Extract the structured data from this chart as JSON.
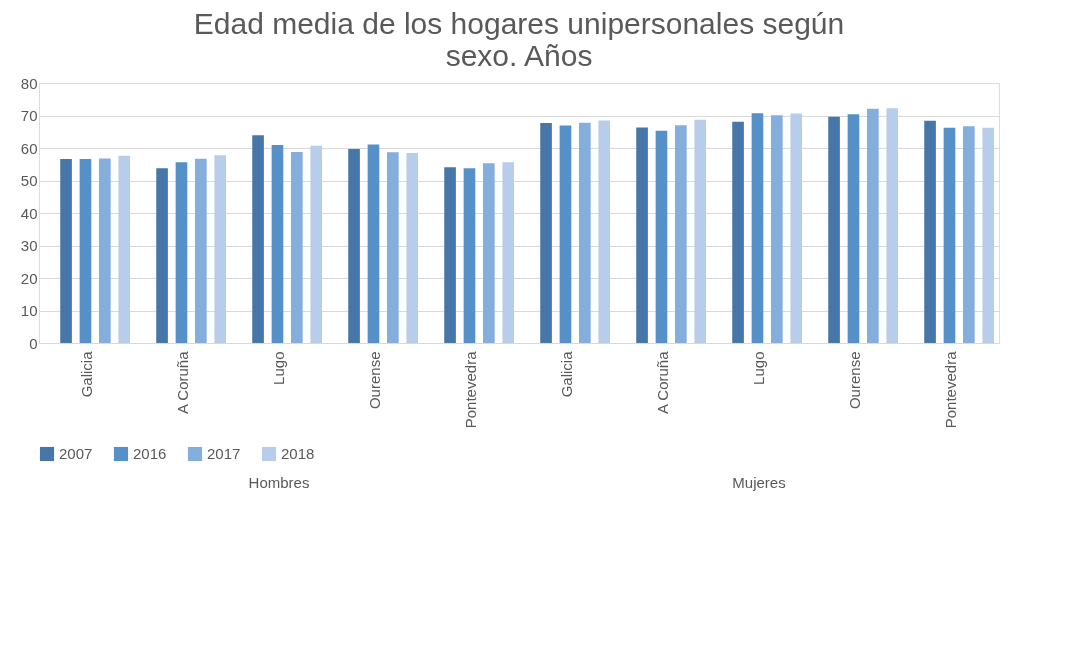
{
  "chart_data": {
    "type": "bar",
    "title": "Edad media de los hogares unipersonales según sexo. Años",
    "categories": [
      "Galicia",
      "A Coruña",
      "Lugo",
      "Ourense",
      "Pontevedra",
      "Galicia",
      "A Coruña",
      "Lugo",
      "Ourense",
      "Pontevedra"
    ],
    "series": [
      {
        "name": "2007",
        "color": "#4677a8",
        "values": [
          56.6,
          53.8,
          63.9,
          59.7,
          54.1,
          67.7,
          66.3,
          68.1,
          69.6,
          68.4
        ]
      },
      {
        "name": "2016",
        "color": "#5590c8",
        "values": [
          56.6,
          55.6,
          60.9,
          61.1,
          53.8,
          66.9,
          65.3,
          70.7,
          70.4,
          66.2
        ]
      },
      {
        "name": "2017",
        "color": "#84aedb",
        "values": [
          56.8,
          56.7,
          58.8,
          58.7,
          55.3,
          67.8,
          67.0,
          70.1,
          72.1,
          66.7
        ]
      },
      {
        "name": "2018",
        "color": "#b7cde9",
        "values": [
          57.6,
          57.8,
          60.7,
          58.5,
          55.6,
          68.5,
          68.7,
          70.6,
          72.2,
          66.2
        ]
      }
    ],
    "annotations": [
      "Hombres",
      "Mujeres"
    ],
    "ylim": [
      0,
      80
    ],
    "yticks": [
      0,
      10,
      20,
      30,
      40,
      50,
      60,
      70,
      80
    ],
    "grid": "y",
    "legend": "bottom"
  }
}
